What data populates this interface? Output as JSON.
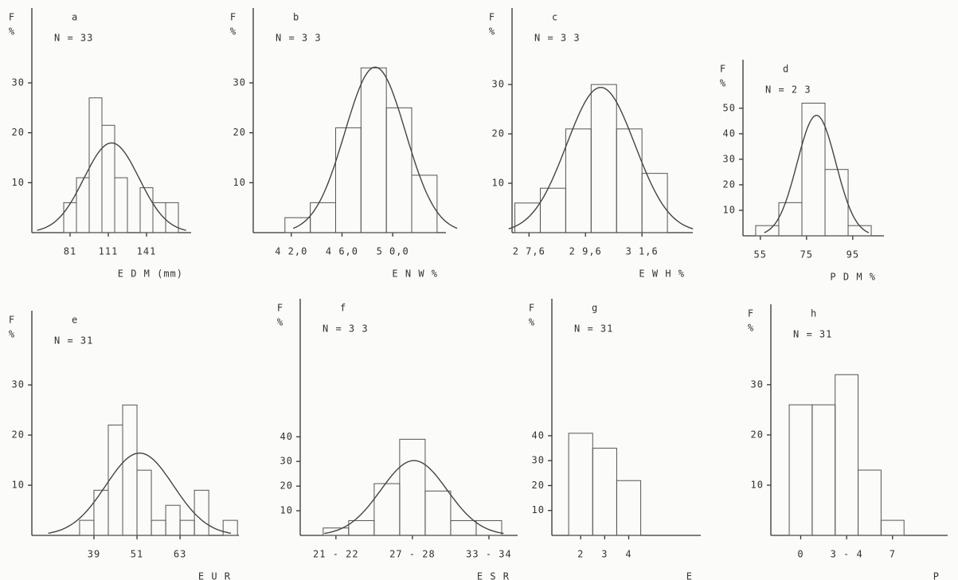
{
  "chart_data": [
    {
      "type": "histogram",
      "letter": "a",
      "n_label": "N =  33",
      "ylabel": [
        "F",
        "%"
      ],
      "xlabel": "E D M (mm)",
      "bins": [
        76,
        86,
        96,
        106,
        116,
        126,
        136,
        146,
        156,
        166
      ],
      "values": [
        6,
        11,
        27,
        21.5,
        11,
        0,
        9,
        6,
        6
      ],
      "xlim": [
        51,
        176
      ],
      "ylim": [
        0,
        45
      ],
      "xticks": [
        81,
        111,
        141
      ],
      "yticks": [
        10,
        20,
        30
      ],
      "fit_curve": true
    },
    {
      "type": "histogram",
      "letter": "b",
      "n_label": "N = 3 3",
      "ylabel": [
        "F",
        "%"
      ],
      "xlabel": "E N W  %",
      "bins": [
        41.5,
        43.5,
        45.5,
        47.5,
        49.5,
        51.5,
        53.5
      ],
      "values": [
        3,
        6,
        21,
        33,
        25,
        11.5
      ],
      "xlim": [
        39,
        54.2
      ],
      "ylim": [
        0,
        45
      ],
      "xticks": [
        {
          "value": 42,
          "label": "4 2,0"
        },
        {
          "value": 46,
          "label": "4 6,0"
        },
        {
          "value": 50,
          "label": "5 0,0"
        }
      ],
      "yticks": [
        10,
        20,
        30
      ],
      "fit_curve": true
    },
    {
      "type": "histogram",
      "letter": "c",
      "n_label": "N = 3 3",
      "ylabel": [
        "F",
        "%"
      ],
      "xlabel": "E W H %",
      "bins": [
        27.1,
        28.0,
        28.9,
        29.8,
        30.7,
        31.6,
        32.5
      ],
      "values": [
        6,
        9,
        21,
        30,
        21,
        12
      ],
      "xlim": [
        27.0,
        33.4
      ],
      "ylim": [
        0,
        45.5
      ],
      "xticks": [
        {
          "value": 27.6,
          "label": "2 7,6"
        },
        {
          "value": 29.6,
          "label": "2 9,6"
        },
        {
          "value": 31.6,
          "label": "3 1,6"
        }
      ],
      "yticks": [
        10,
        20,
        30
      ],
      "fit_curve": true
    },
    {
      "type": "histogram",
      "letter": "d",
      "n_label": "N = 2 3",
      "ylabel": [
        "F",
        "%"
      ],
      "xlabel": "P D M  %",
      "bins": [
        53,
        63,
        73,
        83,
        93,
        103
      ],
      "values": [
        4,
        13,
        52,
        26,
        4
      ],
      "xlim": [
        47.5,
        108.5
      ],
      "ylim": [
        0,
        69
      ],
      "xticks": [
        55,
        75,
        95
      ],
      "yticks": [
        10,
        20,
        30,
        40,
        50
      ],
      "fit_curve": true
    },
    {
      "type": "histogram",
      "letter": "e",
      "n_label": "N = 31",
      "ylabel": [
        "F",
        "%"
      ],
      "xlabel": "E U R",
      "bins": [
        35,
        39,
        43,
        47,
        51,
        55,
        59,
        63,
        67,
        71,
        75,
        79
      ],
      "values": [
        3,
        9,
        22,
        26,
        13,
        3,
        6,
        3,
        9,
        0,
        3
      ],
      "xlim": [
        21.7,
        79.4
      ],
      "ylim": [
        0,
        44.8
      ],
      "xticks": [
        39,
        51,
        63
      ],
      "yticks": [
        10,
        20,
        30
      ],
      "fit_curve": true
    },
    {
      "type": "histogram",
      "letter": "f",
      "n_label": "N = 3 3",
      "ylabel": [
        "F",
        "%"
      ],
      "xlabel": "E S R",
      "bins": [
        20.5,
        22.5,
        24.5,
        26.5,
        28.5,
        30.5,
        32.5,
        34.5
      ],
      "values": [
        3,
        6,
        21,
        39,
        18,
        6,
        6
      ],
      "xlim": [
        18.7,
        35.75
      ],
      "ylim": [
        0,
        96
      ],
      "xticks": [
        {
          "value": 21.5,
          "label": "21 - 22"
        },
        {
          "value": 27.5,
          "label": "27 - 28"
        },
        {
          "value": 33.5,
          "label": "33 - 34"
        }
      ],
      "yticks": [
        10,
        20,
        30,
        40
      ],
      "fit_curve": true
    },
    {
      "type": "histogram",
      "letter": "g",
      "n_label": "N = 31",
      "ylabel": [
        "F",
        "%"
      ],
      "xlabel": "E",
      "bins": [
        1.5,
        2.5,
        3.5,
        4.5
      ],
      "values": [
        41,
        35,
        22
      ],
      "xlim": [
        0.8,
        7
      ],
      "ylim": [
        0,
        95
      ],
      "xticks": [
        2,
        3,
        4
      ],
      "yticks": [
        10,
        20,
        30,
        40
      ],
      "fit_curve": false
    },
    {
      "type": "histogram",
      "letter": "h",
      "n_label": "N = 31",
      "ylabel": [
        "F",
        "%"
      ],
      "xlabel": "P",
      "bins": [
        -0.5,
        0.5,
        1.5,
        2.5,
        3.5,
        4.5
      ],
      "values": [
        26,
        26,
        32,
        13,
        3
      ],
      "xlim": [
        -1.3,
        6.4
      ],
      "ylim": [
        0,
        46
      ],
      "xticks": [
        0,
        {
          "value": 2,
          "label": "3 - 4"
        },
        {
          "value": 4,
          "label": "7"
        }
      ],
      "yticks": [
        10,
        20,
        30
      ],
      "fit_curve": false
    }
  ]
}
